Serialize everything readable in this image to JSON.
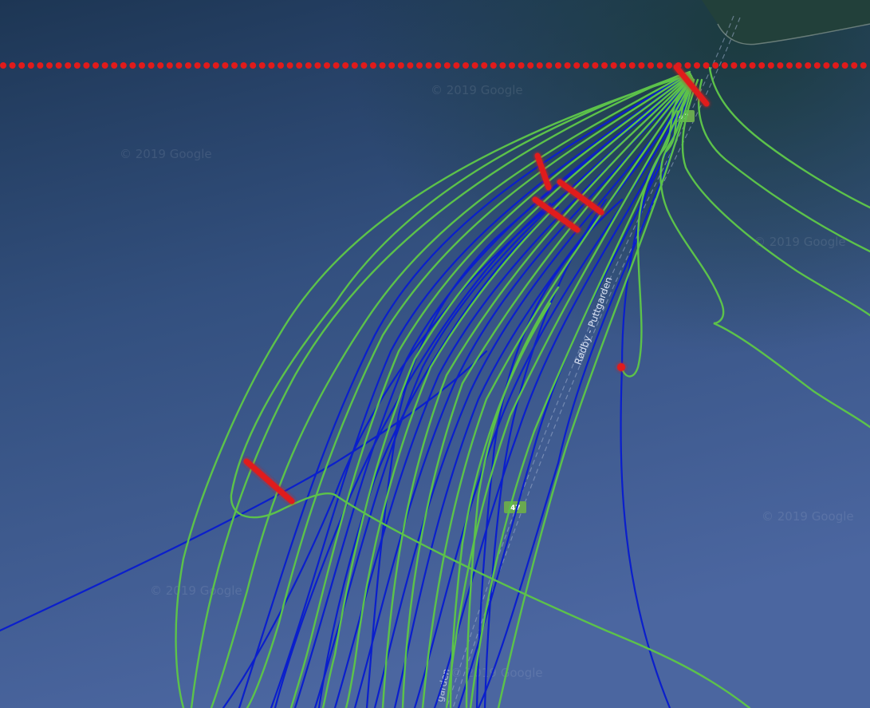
{
  "map": {
    "watermarks": [
      "© 2019 Google",
      "© 2019 Google",
      "© 2019 Google",
      "© 2019 Google",
      "© 2019 Google",
      "© 2019 Google"
    ],
    "route_label": "Rødby - Puttgarden",
    "route_label_bottom": "garden",
    "road_shields": [
      "47",
      "47"
    ],
    "colors": {
      "sea_top": "#1c3550",
      "sea_bottom": "#4a6499",
      "land": "#1f3a36",
      "track_blue": "#0b1fcc",
      "track_green": "#5cc24a",
      "marker_red": "#e01b1b",
      "shield_green": "#6aa84f"
    }
  }
}
